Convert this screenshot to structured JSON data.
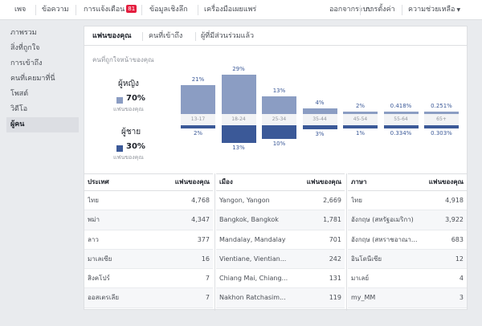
{
  "topbar": {
    "items": [
      "เพจ",
      "ข้อความ",
      "การแจ้งเตือน",
      "ข้อมูลเชิงลึก",
      "เครื่องมือเผยแพร่"
    ],
    "notification_count": "81",
    "right": [
      "ออกจากระบบ",
      "การตั้งค่า",
      "ความช่วยเหลือ"
    ]
  },
  "sidebar": {
    "items": [
      "ภาพรวม",
      "สิ่งที่ถูกใจ",
      "การเข้าถึง",
      "คนที่เคยมาที่นี่",
      "โพสต์",
      "วิดีโอ",
      "ผู้คน"
    ],
    "active_index": 6
  },
  "tabs": [
    "แฟนของคุณ",
    "คนที่เข้าถึง",
    "ผู้ที่มีส่วนร่วมแล้ว"
  ],
  "chart_data": {
    "type": "bar",
    "title": "คนที่ถูกใจหน้าของคุณ",
    "categories": [
      "13-17",
      "18-24",
      "25-34",
      "35-44",
      "45-54",
      "55-64",
      "65+"
    ],
    "series": [
      {
        "name": "ผู้หญิง",
        "values": [
          21,
          29,
          13,
          4,
          2,
          0.418,
          0.251
        ],
        "labels": [
          "21%",
          "29%",
          "13%",
          "4%",
          "2%",
          "0.418%",
          "0.251%"
        ],
        "color": "#8b9dc3"
      },
      {
        "name": "ผู้ชาย",
        "values": [
          2,
          13,
          10,
          3,
          1,
          0.334,
          0.303
        ],
        "labels": [
          "2%",
          "13%",
          "10%",
          "3%",
          "1%",
          "0.334%",
          "0.303%"
        ],
        "color": "#3b5998"
      }
    ],
    "totals": [
      {
        "pct": "70%",
        "sub": "แฟนของคุณ"
      },
      {
        "pct": "30%",
        "sub": "แฟนของคุณ"
      }
    ]
  },
  "tables": [
    {
      "col_header": "ประเทศ",
      "val_header": "แฟนของคุณ",
      "rows": [
        [
          "ไทย",
          "4,768"
        ],
        [
          "พม่า",
          "4,347"
        ],
        [
          "ลาว",
          "377"
        ],
        [
          "มาเลเซีย",
          "16"
        ],
        [
          "สิงคโปร์",
          "7"
        ],
        [
          "ออสเตรเลีย",
          "7"
        ]
      ]
    },
    {
      "col_header": "เมือง",
      "val_header": "แฟนของคุณ",
      "rows": [
        [
          "Yangon, Yangon",
          "2,669"
        ],
        [
          "Bangkok, Bangkok",
          "1,781"
        ],
        [
          "Mandalay, Mandalay",
          "701"
        ],
        [
          "Vientiane, Vientian...",
          "242"
        ],
        [
          "Chiang Mai, Chiang...",
          "131"
        ],
        [
          "Nakhon Ratchasim...",
          "119"
        ]
      ]
    },
    {
      "col_header": "ภาษา",
      "val_header": "แฟนของคุณ",
      "rows": [
        [
          "ไทย",
          "4,918"
        ],
        [
          "อังกฤษ (สหรัฐอเมริกา)",
          "3,922"
        ],
        [
          "อังกฤษ (สหราชอาณา...",
          "683"
        ],
        [
          "อินโดนีเซีย",
          "12"
        ],
        [
          "มาเลย์",
          "4"
        ],
        [
          "my_MM",
          "3"
        ]
      ]
    }
  ]
}
